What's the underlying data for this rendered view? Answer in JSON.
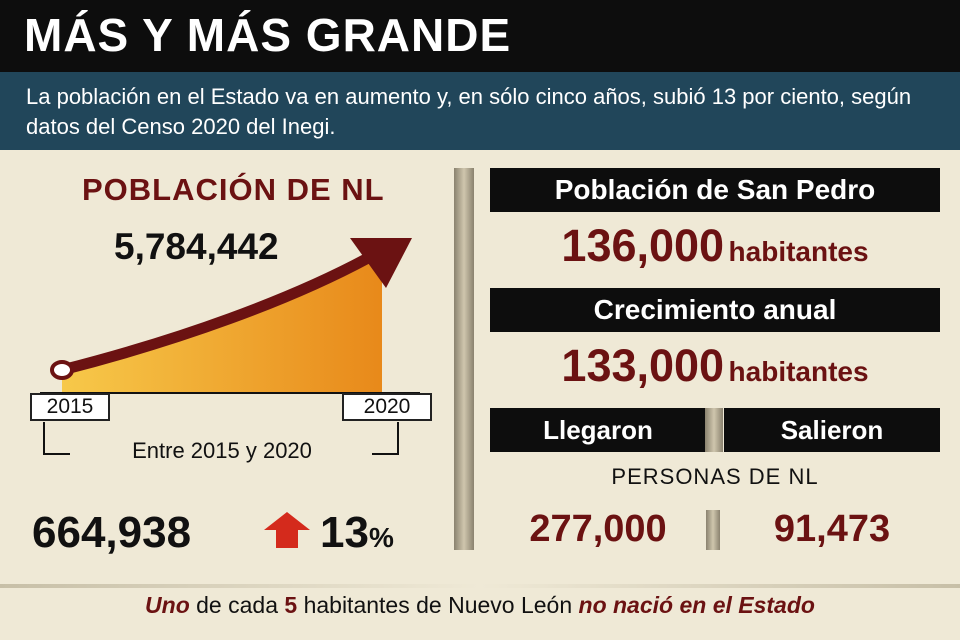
{
  "header": {
    "title": "MÁS Y MÁS GRANDE",
    "intro": "La población en el Estado va en aumento y, en sólo cinco años, subió 13 por ciento, según datos del Censo 2020 del Inegi."
  },
  "chart": {
    "title": "POBLACIÓN DE NL",
    "total": "5,784,442",
    "start_year": "2015",
    "end_year": "2020",
    "caption": "Entre 2015 y 2020",
    "increase": "664,938",
    "percent_value": "13",
    "percent_sign": "%"
  },
  "san_pedro": {
    "label": "Población de San Pedro",
    "value": "136,000",
    "unit": "habitantes"
  },
  "growth": {
    "label": "Crecimiento anual",
    "value": "133,000",
    "unit": "habitantes"
  },
  "migration": {
    "arrived_label": "Llegaron",
    "left_label": "Salieron",
    "caption": "PERSONAS DE NL",
    "arrived_value": "277,000",
    "left_value": "91,473"
  },
  "footer": {
    "part1": "Uno",
    "part2": " de cada ",
    "part3": "5",
    "part4": " habitantes de Nuevo León ",
    "part5": "no nació en el Estado"
  },
  "colors": {
    "title_bar": "#0d0d0d",
    "intro_bar": "#21465a",
    "accent": "#6b1212",
    "background": "#efe9d6",
    "area_fill": "#f0a01c"
  }
}
